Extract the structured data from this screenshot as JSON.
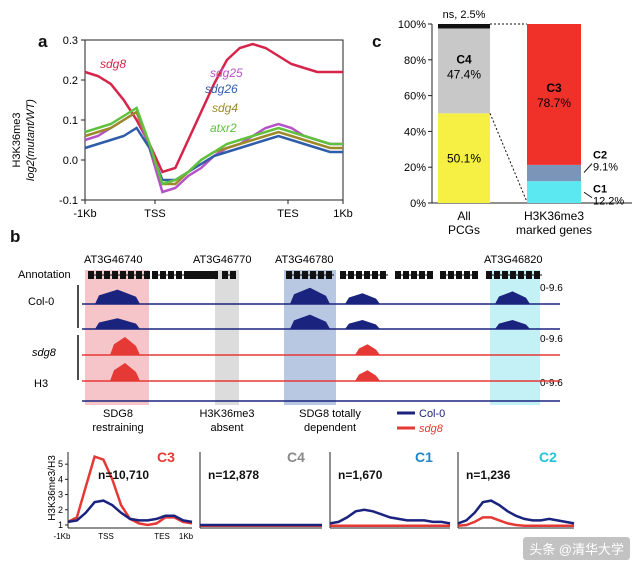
{
  "panels": {
    "a": "a",
    "b": "b",
    "c": "c"
  },
  "chart_data": [
    {
      "id": "panel-a",
      "type": "line",
      "ylabel_line1": "H3K36me3",
      "ylabel_line2": "log2(mutant/WT)",
      "x_ticks": [
        "-1Kb",
        "TSS",
        "TES",
        "1Kb"
      ],
      "y_ticks": [
        "-0.1",
        "0.0",
        "0.1",
        "0.2",
        "0.3"
      ],
      "ylim": [
        -0.1,
        0.3
      ],
      "series": [
        {
          "name": "sdg8",
          "color": "#d6244b",
          "values": [
            0.22,
            0.21,
            0.19,
            0.15,
            0.1,
            0.04,
            -0.03,
            -0.02,
            0.05,
            0.12,
            0.19,
            0.25,
            0.28,
            0.29,
            0.28,
            0.26,
            0.24,
            0.23,
            0.22,
            0.22,
            0.22
          ]
        },
        {
          "name": "sdg25",
          "color": "#b553c6",
          "values": [
            0.05,
            0.06,
            0.08,
            0.1,
            0.12,
            0.03,
            -0.08,
            -0.07,
            -0.04,
            -0.02,
            0.01,
            0.03,
            0.04,
            0.06,
            0.08,
            0.09,
            0.08,
            0.06,
            0.05,
            0.04,
            0.04
          ]
        },
        {
          "name": "sdg26",
          "color": "#2f5da9",
          "values": [
            0.03,
            0.04,
            0.05,
            0.06,
            0.08,
            0.03,
            -0.05,
            -0.05,
            -0.03,
            -0.01,
            0.01,
            0.02,
            0.03,
            0.04,
            0.05,
            0.06,
            0.05,
            0.04,
            0.03,
            0.02,
            0.02
          ]
        },
        {
          "name": "sdg4",
          "color": "#9c8a2a",
          "values": [
            0.06,
            0.07,
            0.08,
            0.1,
            0.12,
            0.04,
            -0.06,
            -0.06,
            -0.03,
            0.0,
            0.02,
            0.03,
            0.04,
            0.05,
            0.06,
            0.07,
            0.06,
            0.05,
            0.04,
            0.03,
            0.03
          ]
        },
        {
          "name": "atxr2",
          "color": "#5fc13e",
          "values": [
            0.07,
            0.08,
            0.09,
            0.11,
            0.13,
            0.04,
            -0.06,
            -0.05,
            -0.03,
            0.0,
            0.02,
            0.04,
            0.05,
            0.06,
            0.07,
            0.08,
            0.07,
            0.06,
            0.05,
            0.04,
            0.04
          ]
        }
      ]
    },
    {
      "id": "panel-c",
      "type": "bar",
      "categories": [
        "All PCGs",
        "H3K36me3 marked genes"
      ],
      "y_ticks": [
        "0%",
        "20%",
        "40%",
        "60%",
        "80%",
        "100%"
      ],
      "ylim": [
        0,
        100
      ],
      "bar1": [
        {
          "label": "50.1%",
          "value": 50.1,
          "color": "#f5f043"
        },
        {
          "label": "C4",
          "pct": "47.4%",
          "value": 47.4,
          "color": "#c8c8c8"
        },
        {
          "label": "ns, 2.5%",
          "value": 2.5,
          "color": "#111111"
        }
      ],
      "bar2": [
        {
          "label": "C1",
          "pct": "12.2%",
          "value": 12.2,
          "color": "#5ce8f0"
        },
        {
          "label": "C2",
          "pct": "9.1%",
          "value": 9.1,
          "color": "#7a95b8"
        },
        {
          "label": "C3",
          "pct": "78.7%",
          "value": 78.7,
          "color": "#f0312a"
        }
      ]
    },
    {
      "id": "panel-b-profiles",
      "type": "line",
      "ylabel": "H3K36me3/H3",
      "y_ticks": [
        "1",
        "2",
        "3",
        "4",
        "5"
      ],
      "x_ticks": [
        "-1Kb",
        "TSS",
        "TES",
        "1Kb"
      ],
      "legend": [
        {
          "name": "Col-0",
          "color": "#1a237e"
        },
        {
          "name": "sdg8",
          "color": "#e53935"
        }
      ],
      "groups": [
        {
          "cluster": "C3",
          "n": "n=10,710",
          "color": "#e53935",
          "col0": [
            1.2,
            1.3,
            1.8,
            2.5,
            2.6,
            2.3,
            1.8,
            1.4,
            1.3,
            1.3,
            1.4,
            1.6,
            1.6,
            1.3,
            1.2
          ],
          "sdg8": [
            1.2,
            1.5,
            3.5,
            5.5,
            5.3,
            4.0,
            2.3,
            1.4,
            1.1,
            1.0,
            1.1,
            1.5,
            1.5,
            1.2,
            1.1
          ]
        },
        {
          "cluster": "C4",
          "n": "n=12,878",
          "color": "#8a8a8a",
          "col0": [
            1.0,
            1.0,
            1.0,
            1.0,
            1.0,
            1.0,
            1.0,
            1.0,
            1.0,
            1.0,
            1.0,
            1.0,
            1.0,
            1.0,
            1.0
          ],
          "sdg8": [
            0.95,
            0.95,
            0.95,
            0.95,
            0.95,
            0.95,
            0.95,
            0.95,
            0.95,
            0.95,
            0.95,
            0.95,
            0.95,
            0.95,
            0.95
          ]
        },
        {
          "cluster": "C1",
          "n": "n=1,670",
          "color": "#1e88c8",
          "col0": [
            1.1,
            1.2,
            1.5,
            1.9,
            2.0,
            1.9,
            1.7,
            1.5,
            1.4,
            1.3,
            1.3,
            1.3,
            1.2,
            1.2,
            1.1
          ],
          "sdg8": [
            0.95,
            0.95,
            0.95,
            0.95,
            0.95,
            0.95,
            0.95,
            0.95,
            0.95,
            0.95,
            0.95,
            0.95,
            0.95,
            0.95,
            0.95
          ]
        },
        {
          "cluster": "C2",
          "n": "n=1,236",
          "color": "#22c3d8",
          "col0": [
            1.1,
            1.3,
            1.8,
            2.5,
            2.6,
            2.3,
            1.9,
            1.6,
            1.4,
            1.3,
            1.3,
            1.4,
            1.3,
            1.2,
            1.1
          ],
          "sdg8": [
            0.95,
            1.0,
            1.2,
            1.5,
            1.5,
            1.3,
            1.1,
            1.0,
            0.95,
            0.95,
            0.95,
            0.95,
            0.95,
            0.95,
            0.95
          ]
        }
      ]
    }
  ],
  "browser": {
    "genes": [
      "AT3G46740",
      "AT3G46770",
      "AT3G46780",
      "AT3G46820"
    ],
    "annotation_label": "Annotation",
    "tracks": [
      {
        "label": "Col-0",
        "range": "0-9.6"
      },
      {
        "label": "sdg8",
        "range": "0-9.6"
      },
      {
        "label": "H3",
        "range": "0-9.6"
      }
    ],
    "region_labels": [
      {
        "line1": "SDG8",
        "line2": "restraining"
      },
      {
        "line1": "H3K36me3",
        "line2": "absent"
      },
      {
        "line1": "SDG8 totally",
        "line2": "dependent"
      }
    ]
  },
  "watermark": "头条 @清华大学"
}
